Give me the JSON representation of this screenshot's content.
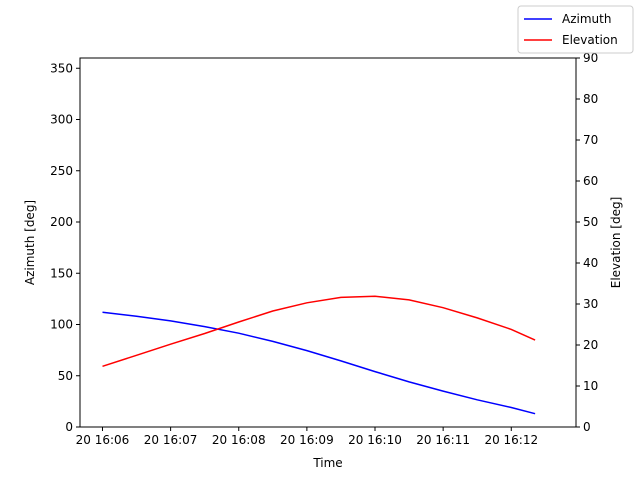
{
  "chart_data": {
    "type": "line",
    "xlabel": "Time",
    "ylabel_left": "Azimuth [deg]",
    "ylabel_right": "Elevation [deg]",
    "x_ticks": [
      "20 16:06",
      "20 16:07",
      "20 16:08",
      "20 16:09",
      "20 16:10",
      "20 16:11",
      "20 16:12"
    ],
    "x_tick_minutes": [
      0,
      1,
      2,
      3,
      4,
      5,
      6
    ],
    "xlim_minutes": [
      -0.33,
      6.95
    ],
    "ylim_left": [
      0,
      360
    ],
    "yticks_left": [
      0,
      50,
      100,
      150,
      200,
      250,
      300,
      350
    ],
    "ylim_right": [
      0,
      90
    ],
    "yticks_right": [
      0,
      10,
      20,
      30,
      40,
      50,
      60,
      70,
      80,
      90
    ],
    "legend_position": "top-right",
    "series": [
      {
        "name": "Azimuth",
        "color": "#0000ff",
        "axis": "left",
        "x_minutes": [
          0,
          0.5,
          1,
          1.5,
          2,
          2.5,
          3,
          3.5,
          4,
          4.5,
          5,
          5.5,
          6,
          6.35
        ],
        "values": [
          112,
          108,
          103.5,
          98,
          91.5,
          83.5,
          74.5,
          64.5,
          54,
          44,
          35,
          26.5,
          19,
          13
        ]
      },
      {
        "name": "Elevation",
        "color": "#ff0000",
        "axis": "right",
        "x_minutes": [
          0,
          0.5,
          1,
          1.5,
          2,
          2.5,
          3,
          3.5,
          4,
          4.5,
          5,
          5.5,
          6,
          6.35
        ],
        "values": [
          14.8,
          17.5,
          20.2,
          22.8,
          25.6,
          28.3,
          30.3,
          31.6,
          31.9,
          31.0,
          29.1,
          26.6,
          23.8,
          21.2
        ]
      }
    ]
  }
}
